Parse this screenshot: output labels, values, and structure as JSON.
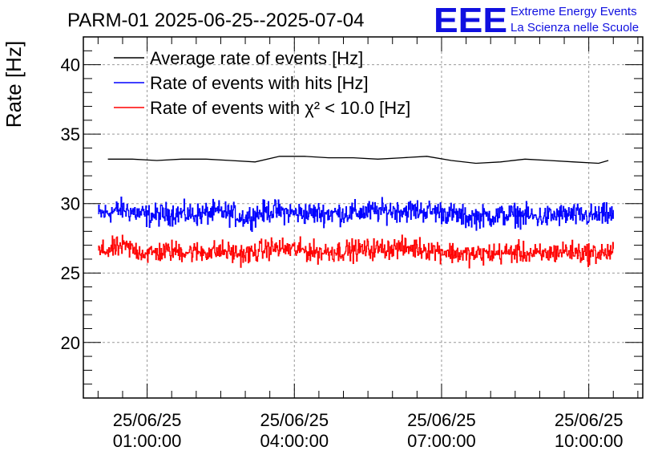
{
  "title": "PARM-01 2025-06-25--2025-07-04",
  "logo": {
    "mark": "EEE",
    "line1": "Extreme Energy Events",
    "line2": "La Scienza nelle Scuole",
    "color": "#1a1ae6"
  },
  "chart_data": {
    "type": "line",
    "ylabel": "Rate [Hz]",
    "xlabel": "",
    "ylim": [
      16,
      42
    ],
    "yticks": [
      20,
      25,
      30,
      35,
      40
    ],
    "xlim_hours": [
      -0.3,
      11.1
    ],
    "xticks": [
      {
        "hour": 1,
        "date": "25/06/25",
        "time": "01:00:00"
      },
      {
        "hour": 4,
        "date": "25/06/25",
        "time": "04:00:00"
      },
      {
        "hour": 7,
        "date": "25/06/25",
        "time": "07:00:00"
      },
      {
        "hour": 10,
        "date": "25/06/25",
        "time": "10:00:00"
      }
    ],
    "grid": true,
    "legend_position": "top-left",
    "series": [
      {
        "name": "Average rate of events [Hz]",
        "color": "#000000",
        "x_hours": [
          0.2,
          0.7,
          1.2,
          1.7,
          2.2,
          2.7,
          3.2,
          3.7,
          4.2,
          4.7,
          5.2,
          5.7,
          6.2,
          6.7,
          7.2,
          7.7,
          8.2,
          8.7,
          9.2,
          9.7,
          10.2,
          10.4
        ],
        "values": [
          33.2,
          33.2,
          33.1,
          33.2,
          33.2,
          33.1,
          33.0,
          33.4,
          33.4,
          33.3,
          33.3,
          33.2,
          33.3,
          33.4,
          33.1,
          32.9,
          33.0,
          33.2,
          33.1,
          33.0,
          32.9,
          33.1
        ]
      },
      {
        "name": "Rate of events with hits [Hz]",
        "color": "#0000ff",
        "x_hours": [
          0.0,
          0.5,
          1.0,
          1.5,
          2.0,
          2.5,
          3.0,
          3.5,
          4.0,
          4.5,
          5.0,
          5.5,
          6.0,
          6.5,
          7.0,
          7.5,
          8.0,
          8.5,
          9.0,
          9.5,
          10.0,
          10.5
        ],
        "values": [
          29.2,
          29.6,
          29.1,
          29.3,
          29.2,
          29.4,
          29.0,
          29.5,
          29.3,
          29.3,
          29.3,
          29.4,
          29.5,
          29.5,
          29.4,
          29.0,
          29.1,
          29.2,
          29.0,
          29.2,
          29.1,
          29.2
        ],
        "noise": 0.8
      },
      {
        "name": "Rate of events with χ² < 10.0 [Hz]",
        "color": "#ff0000",
        "x_hours": [
          0.0,
          0.5,
          1.0,
          1.5,
          2.0,
          2.5,
          3.0,
          3.5,
          4.0,
          4.5,
          5.0,
          5.5,
          6.0,
          6.5,
          7.0,
          7.5,
          8.0,
          8.5,
          9.0,
          9.5,
          10.0,
          10.5
        ],
        "values": [
          26.5,
          26.9,
          26.4,
          26.6,
          26.5,
          26.6,
          26.3,
          26.8,
          26.7,
          26.5,
          26.6,
          26.7,
          26.8,
          26.8,
          26.6,
          26.3,
          26.4,
          26.5,
          26.3,
          26.6,
          26.4,
          26.5
        ],
        "noise": 0.75
      }
    ]
  }
}
